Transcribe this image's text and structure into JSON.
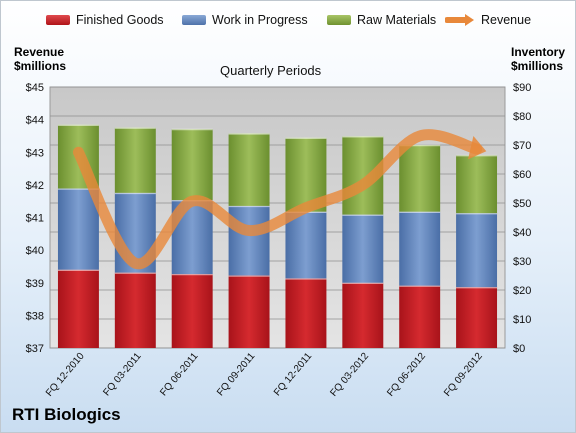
{
  "chart_data": {
    "type": "bar",
    "title": "Quarterly Periods",
    "categories": [
      "FQ 12-2010",
      "FQ 03-2011",
      "FQ 06-2011",
      "FQ 09-2011",
      "FQ 12-2011",
      "FQ 03-2012",
      "FQ 06-2012",
      "FQ 09-2012"
    ],
    "series": [
      {
        "name": "Finished Goods",
        "axis": "right",
        "stack": "inventory",
        "color": "#c0181d",
        "values": [
          27,
          26,
          25.5,
          25,
          24,
          22.5,
          21.5,
          21
        ]
      },
      {
        "name": "Work in Progress",
        "axis": "right",
        "stack": "inventory",
        "color": "#5b7fb5",
        "values": [
          28,
          27.5,
          25.5,
          24,
          23,
          23.5,
          25.5,
          25.5
        ]
      },
      {
        "name": "Raw Materials",
        "axis": "right",
        "stack": "inventory",
        "color": "#7ea03c",
        "values": [
          22,
          22.5,
          24.5,
          25,
          25.5,
          27,
          23,
          20
        ]
      },
      {
        "name": "Revenue",
        "axis": "left",
        "type": "line",
        "color": "#e8883a",
        "values": [
          43.0,
          39.6,
          41.5,
          40.6,
          41.3,
          42.0,
          43.5,
          43.1
        ]
      }
    ],
    "ylabel_left": "Revenue\n$millions",
    "ylabel_right": "Inventory\n$millions",
    "ylim_left": [
      37,
      45
    ],
    "ylim_right": [
      0,
      90
    ],
    "yticks_left": [
      "$37",
      "$38",
      "$39",
      "$40",
      "$41",
      "$42",
      "$43",
      "$44",
      "$45"
    ],
    "yticks_right": [
      "$0",
      "$10",
      "$20",
      "$30",
      "$40",
      "$50",
      "$60",
      "$70",
      "$80",
      "$90"
    ],
    "grid": true,
    "legend": "top"
  },
  "labels": {
    "company": "RTI Biologics",
    "left_axis_line1": "Revenue",
    "left_axis_line2": "$millions",
    "right_axis_line1": "Inventory",
    "right_axis_line2": "$millions"
  }
}
